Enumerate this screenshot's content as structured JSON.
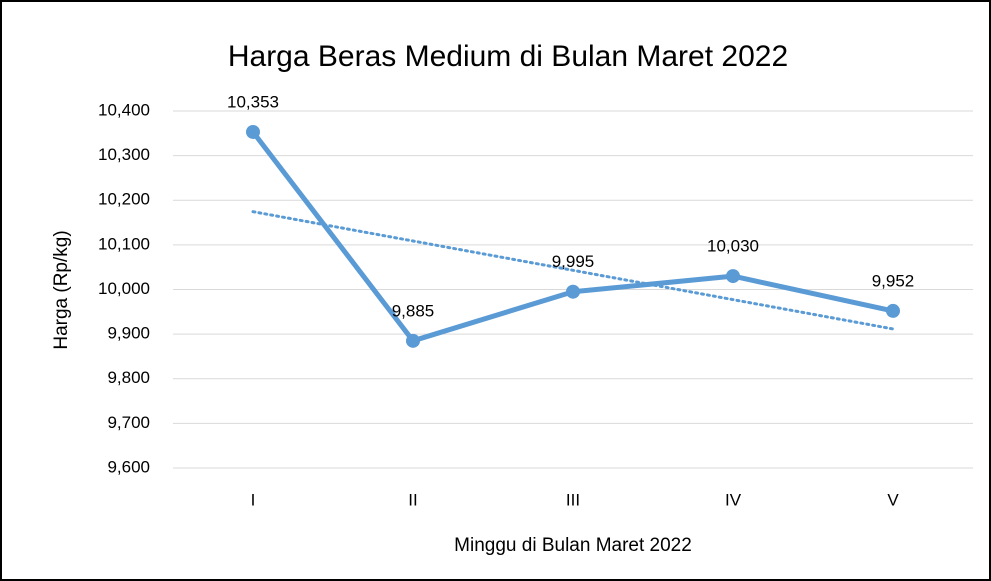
{
  "chart_data": {
    "type": "line",
    "title": "Harga Beras Medium di Bulan Maret 2022",
    "x_label": "Minggu di Bulan Maret 2022",
    "y_label": "Harga (Rp/kg)",
    "categories": [
      "I",
      "II",
      "III",
      "IV",
      "V"
    ],
    "series": [
      {
        "name": "Harga",
        "color": "#5b9bd5",
        "values": [
          10353,
          9885,
          9995,
          10030,
          9952
        ],
        "value_labels": [
          "10,353",
          "9,885",
          "9,995",
          "10,030",
          "9,952"
        ]
      }
    ],
    "trendline": "linear",
    "ylim": [
      9600,
      10400
    ],
    "yticks": [
      {
        "value": 9600,
        "label": "9,600"
      },
      {
        "value": 9700,
        "label": "9,700"
      },
      {
        "value": 9800,
        "label": "9,800"
      },
      {
        "value": 9900,
        "label": "9,900"
      },
      {
        "value": 10000,
        "label": "10,000"
      },
      {
        "value": 10100,
        "label": "10,100"
      },
      {
        "value": 10200,
        "label": "10,200"
      },
      {
        "value": 10300,
        "label": "10,300"
      },
      {
        "value": 10400,
        "label": "10,400"
      }
    ],
    "grid": true
  }
}
